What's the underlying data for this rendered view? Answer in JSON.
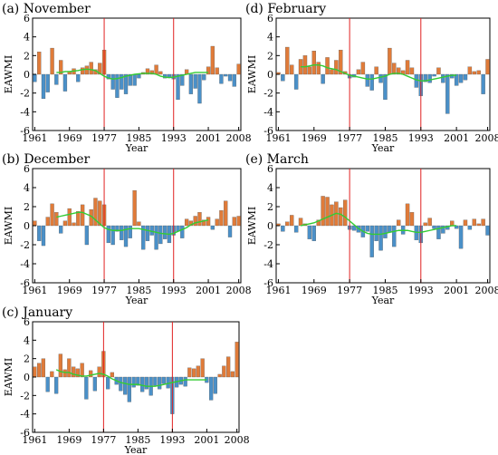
{
  "chart_data": [
    {
      "type": "bar",
      "title": "(a) November",
      "xlabel": "Year",
      "ylabel": "EAWMI",
      "ylim": [
        -6,
        6
      ],
      "xlim": [
        1961,
        2008
      ],
      "yticks": [
        6,
        4,
        2,
        0,
        -2,
        -4,
        -6
      ],
      "xtick_labels": [
        "1961",
        "1969",
        "1977",
        "1985",
        "1993",
        "2001",
        "2008"
      ],
      "reference_lines": [
        1977,
        1993
      ],
      "colors": {
        "positive": "#e07b39",
        "negative": "#4a90c8",
        "smoothed": "#33cc33",
        "reference": "#e02020"
      },
      "x": [
        1961,
        1962,
        1963,
        1964,
        1965,
        1966,
        1967,
        1968,
        1969,
        1970,
        1971,
        1972,
        1973,
        1974,
        1975,
        1976,
        1977,
        1978,
        1979,
        1980,
        1981,
        1982,
        1983,
        1984,
        1985,
        1986,
        1987,
        1988,
        1989,
        1990,
        1991,
        1992,
        1993,
        1994,
        1995,
        1996,
        1997,
        1998,
        1999,
        2000,
        2001,
        2002,
        2003,
        2004,
        2005,
        2006,
        2007,
        2008
      ],
      "values": [
        -0.8,
        2.4,
        -2.6,
        -1.9,
        2.8,
        -1.1,
        1.5,
        -1.8,
        0.3,
        0.6,
        -0.8,
        0.7,
        0.9,
        1.3,
        0.5,
        1.2,
        2.6,
        -0.5,
        -1.6,
        -2.5,
        -1.6,
        -2.1,
        -1.2,
        -1.2,
        -0.4,
        0.2,
        0.6,
        0.4,
        1.0,
        0.3,
        -0.4,
        -0.3,
        -0.5,
        -2.7,
        -1.2,
        0.5,
        -2.1,
        -1.5,
        -3.1,
        -0.6,
        0.8,
        3.0,
        0.7,
        -1.0,
        -0.2,
        -0.7,
        -1.3,
        1.1
      ],
      "smoothed": [
        null,
        null,
        null,
        null,
        null,
        0.2,
        0.2,
        0.3,
        0.3,
        0.35,
        0.4,
        0.5,
        0.55,
        0.5,
        0.4,
        0.1,
        -0.2,
        -0.4,
        -0.5,
        -0.45,
        -0.35,
        -0.2,
        -0.1,
        0.0,
        0.05,
        0.1,
        0.1,
        0.1,
        0.0,
        -0.2,
        -0.3,
        -0.35,
        -0.3,
        -0.2,
        -0.1,
        0.0,
        0.1,
        0.2,
        0.2,
        0.2,
        0.2,
        null,
        null,
        null,
        null,
        null,
        null,
        null
      ]
    },
    {
      "type": "bar",
      "title": "(b) December",
      "xlabel": "Year",
      "ylabel": "EAWMI",
      "ylim": [
        -6,
        6
      ],
      "xlim": [
        1961,
        2008
      ],
      "yticks": [
        6,
        4,
        2,
        0,
        -2,
        -4,
        -6
      ],
      "xtick_labels": [
        "1961",
        "1969",
        "1977",
        "1985",
        "1993",
        "2001",
        "2008"
      ],
      "reference_lines": [
        1977,
        1993
      ],
      "colors": {
        "positive": "#e07b39",
        "negative": "#4a90c8",
        "smoothed": "#33cc33",
        "reference": "#e02020"
      },
      "x": [
        1961,
        1962,
        1963,
        1964,
        1965,
        1966,
        1967,
        1968,
        1969,
        1970,
        1971,
        1972,
        1973,
        1974,
        1975,
        1976,
        1977,
        1978,
        1979,
        1980,
        1981,
        1982,
        1983,
        1984,
        1985,
        1986,
        1987,
        1988,
        1989,
        1990,
        1991,
        1992,
        1993,
        1994,
        1995,
        1996,
        1997,
        1998,
        1999,
        2000,
        2001,
        2002,
        2003,
        2004,
        2005,
        2006,
        2007,
        2008
      ],
      "values": [
        0.5,
        -1.6,
        -2.1,
        0.9,
        2.3,
        1.4,
        -0.8,
        0.5,
        1.8,
        0.3,
        1.5,
        2.2,
        -2.0,
        1.7,
        2.9,
        2.6,
        2.2,
        -1.8,
        -2.0,
        -0.6,
        -1.5,
        -2.2,
        -1.3,
        3.7,
        0.4,
        -2.5,
        -1.6,
        -1.0,
        -2.5,
        -1.9,
        -1.4,
        -1.8,
        -1.0,
        -0.6,
        -1.3,
        0.7,
        0.5,
        1.0,
        1.4,
        0.6,
        0.9,
        -0.4,
        0.7,
        1.6,
        2.6,
        -1.2,
        0.9,
        1.0
      ],
      "smoothed": [
        null,
        null,
        null,
        null,
        null,
        0.9,
        1.0,
        1.1,
        1.2,
        1.3,
        1.4,
        1.4,
        1.2,
        1.0,
        0.6,
        0.2,
        -0.2,
        -0.4,
        -0.5,
        -0.5,
        -0.5,
        -0.4,
        -0.3,
        -0.3,
        -0.3,
        -0.4,
        -0.5,
        -0.6,
        -0.7,
        -0.8,
        -0.85,
        -0.9,
        -0.8,
        -0.6,
        -0.4,
        -0.2,
        0.1,
        0.3,
        0.4,
        0.5,
        0.6,
        null,
        null,
        null,
        null,
        null,
        null,
        null
      ]
    },
    {
      "type": "bar",
      "title": "(c) January",
      "xlabel": "Year",
      "ylabel": "EAWMI",
      "ylim": [
        -6,
        6
      ],
      "xlim": [
        1961,
        2008
      ],
      "yticks": [
        6,
        4,
        2,
        0,
        -2,
        -4,
        -6
      ],
      "xtick_labels": [
        "1961",
        "1969",
        "1977",
        "1985",
        "1993",
        "2001",
        "2008"
      ],
      "reference_lines": [
        1977,
        1993
      ],
      "colors": {
        "positive": "#e07b39",
        "negative": "#4a90c8",
        "smoothed": "#33cc33",
        "reference": "#e02020"
      },
      "x": [
        1961,
        1962,
        1963,
        1964,
        1965,
        1966,
        1967,
        1968,
        1969,
        1970,
        1971,
        1972,
        1973,
        1974,
        1975,
        1976,
        1977,
        1978,
        1979,
        1980,
        1981,
        1982,
        1983,
        1984,
        1985,
        1986,
        1987,
        1988,
        1989,
        1990,
        1991,
        1992,
        1993,
        1994,
        1995,
        1996,
        1997,
        1998,
        1999,
        2000,
        2001,
        2002,
        2003,
        2004,
        2005,
        2006,
        2007,
        2008
      ],
      "values": [
        1.1,
        1.5,
        2.0,
        -1.6,
        0.6,
        -1.8,
        2.5,
        0.8,
        2.0,
        1.1,
        0.9,
        1.5,
        -2.4,
        0.7,
        -1.5,
        1.1,
        2.8,
        -1.3,
        0.5,
        -0.8,
        -1.5,
        -1.9,
        -2.7,
        -1.1,
        -0.9,
        -1.6,
        -1.3,
        -2.0,
        -0.9,
        -1.3,
        -0.7,
        -1.2,
        -4.0,
        -1.1,
        -0.8,
        -1.0,
        1.0,
        0.9,
        1.2,
        2.0,
        -0.6,
        -2.5,
        -1.8,
        0.3,
        1.2,
        2.2,
        0.6,
        3.8
      ],
      "smoothed": [
        null,
        null,
        null,
        null,
        null,
        0.8,
        0.6,
        0.5,
        0.5,
        0.3,
        0.2,
        0.1,
        0.1,
        0.2,
        0.3,
        0.4,
        0.3,
        0.1,
        -0.2,
        -0.4,
        -0.6,
        -0.7,
        -0.8,
        -0.8,
        -0.8,
        -0.9,
        -1.0,
        -1.0,
        -1.0,
        -0.9,
        -0.8,
        -0.7,
        -0.6,
        -0.5,
        -0.4,
        -0.3,
        -0.3,
        -0.3,
        -0.3,
        -0.3,
        -0.3,
        null,
        null,
        null,
        null,
        null,
        null,
        null
      ]
    },
    {
      "type": "bar",
      "title": "(d) February",
      "xlabel": "Year",
      "ylabel": "EAWMI",
      "ylim": [
        -6,
        6
      ],
      "xlim": [
        1961,
        2008
      ],
      "yticks": [
        6,
        4,
        2,
        0,
        -2,
        -4,
        -6
      ],
      "xtick_labels": [
        "1961",
        "1969",
        "1977",
        "1985",
        "1993",
        "2001",
        "2008"
      ],
      "reference_lines": [
        1977,
        1993
      ],
      "colors": {
        "positive": "#e07b39",
        "negative": "#4a90c8",
        "smoothed": "#33cc33",
        "reference": "#e02020"
      },
      "x": [
        1961,
        1962,
        1963,
        1964,
        1965,
        1966,
        1967,
        1968,
        1969,
        1970,
        1971,
        1972,
        1973,
        1974,
        1975,
        1976,
        1977,
        1978,
        1979,
        1980,
        1981,
        1982,
        1983,
        1984,
        1985,
        1986,
        1987,
        1988,
        1989,
        1990,
        1991,
        1992,
        1993,
        1994,
        1995,
        1996,
        1997,
        1998,
        1999,
        2000,
        2001,
        2002,
        2003,
        2004,
        2005,
        2006,
        2007,
        2008
      ],
      "values": [
        0.2,
        -0.7,
        2.9,
        1.0,
        -1.6,
        1.6,
        2.0,
        0.8,
        2.5,
        1.3,
        -1.0,
        1.8,
        0.5,
        1.5,
        2.6,
        0.3,
        -0.4,
        -0.3,
        0.5,
        1.3,
        -1.3,
        -1.7,
        0.8,
        -0.9,
        -2.7,
        2.8,
        1.2,
        0.7,
        0.4,
        1.5,
        0.7,
        -1.4,
        -2.3,
        -0.8,
        -0.9,
        -0.2,
        0.7,
        -0.9,
        -4.2,
        -0.4,
        -1.2,
        -0.9,
        -0.6,
        0.8,
        0.3,
        0.4,
        -2.1,
        1.6
      ],
      "smoothed": [
        null,
        null,
        null,
        null,
        null,
        0.8,
        0.8,
        0.9,
        1.0,
        1.0,
        0.9,
        0.7,
        0.6,
        0.5,
        0.3,
        0.1,
        -0.1,
        -0.2,
        -0.3,
        -0.4,
        -0.5,
        -0.5,
        -0.4,
        -0.3,
        -0.2,
        0.0,
        0.1,
        0.1,
        0.0,
        -0.2,
        -0.4,
        -0.6,
        -0.7,
        -0.7,
        -0.6,
        -0.5,
        -0.4,
        -0.3,
        -0.2,
        -0.1,
        -0.1,
        null,
        null,
        null,
        null,
        null,
        null,
        null
      ]
    },
    {
      "type": "bar",
      "title": "(e) March",
      "xlabel": "Year",
      "ylabel": "EAWMI",
      "ylim": [
        -6,
        6
      ],
      "xlim": [
        1961,
        2008
      ],
      "yticks": [
        6,
        4,
        2,
        0,
        -2,
        -4,
        -6
      ],
      "xtick_labels": [
        "1961",
        "1969",
        "1977",
        "1985",
        "1993",
        "2001",
        "2008"
      ],
      "reference_lines": [
        1977,
        1993
      ],
      "colors": {
        "positive": "#e07b39",
        "negative": "#4a90c8",
        "smoothed": "#33cc33",
        "reference": "#e02020"
      },
      "x": [
        1961,
        1962,
        1963,
        1964,
        1965,
        1966,
        1967,
        1968,
        1969,
        1970,
        1971,
        1972,
        1973,
        1974,
        1975,
        1976,
        1977,
        1978,
        1979,
        1980,
        1981,
        1982,
        1983,
        1984,
        1985,
        1986,
        1987,
        1988,
        1989,
        1990,
        1991,
        1992,
        1993,
        1994,
        1995,
        1996,
        1997,
        1998,
        1999,
        2000,
        2001,
        2002,
        2003,
        2004,
        2005,
        2006,
        2007,
        2008
      ],
      "values": [
        0.2,
        -0.6,
        0.4,
        1.1,
        -0.7,
        0.8,
        0.2,
        -1.4,
        -1.6,
        0.6,
        3.1,
        3.0,
        2.2,
        2.5,
        1.9,
        2.7,
        -0.4,
        -0.5,
        -0.7,
        -1.2,
        -0.6,
        -3.3,
        -1.6,
        -2.6,
        -1.3,
        -0.7,
        -2.2,
        0.6,
        -0.9,
        2.3,
        1.4,
        -1.5,
        -1.8,
        0.3,
        0.8,
        -0.3,
        -1.4,
        -0.8,
        -0.4,
        0.5,
        -0.3,
        -2.4,
        0.6,
        -0.4,
        0.7,
        0.2,
        0.7,
        -1.0
      ],
      "smoothed": [
        null,
        null,
        null,
        null,
        null,
        0.0,
        0.1,
        0.2,
        0.3,
        0.5,
        0.7,
        0.9,
        1.1,
        1.3,
        1.2,
        0.9,
        0.5,
        0.1,
        -0.3,
        -0.6,
        -0.8,
        -0.9,
        -0.9,
        -0.9,
        -0.8,
        -0.7,
        -0.6,
        -0.5,
        -0.5,
        -0.5,
        -0.6,
        -0.7,
        -0.7,
        -0.6,
        -0.5,
        -0.4,
        -0.3,
        -0.2,
        -0.1,
        0.0,
        0.0,
        null,
        null,
        null,
        null,
        null,
        null,
        null
      ]
    }
  ]
}
